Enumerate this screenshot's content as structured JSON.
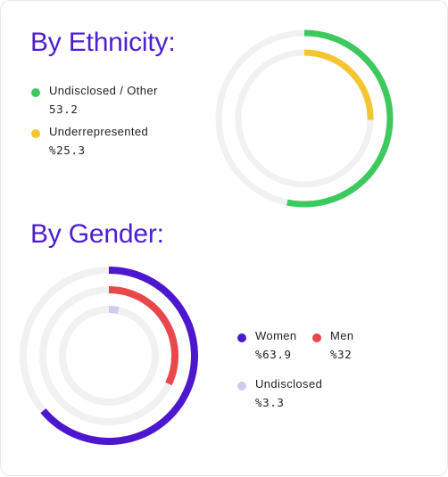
{
  "chart_data": [
    {
      "type": "donut",
      "title": "By Ethnicity:",
      "series": [
        {
          "name": "Undisclosed / Other",
          "value": 53.2,
          "value_label": "53.2",
          "color": "#3ec95f"
        },
        {
          "name": "Underrepresented",
          "value": 25.3,
          "value_label": "%25.3",
          "color": "#f3c631"
        }
      ],
      "track_color": "#f1f1f1"
    },
    {
      "type": "donut",
      "title": "By Gender:",
      "series": [
        {
          "name": "Women",
          "value": 63.9,
          "value_label": "%63.9",
          "color": "#4d17cf"
        },
        {
          "name": "Men",
          "value": 32,
          "value_label": "%32",
          "color": "#e8474c"
        },
        {
          "name": "Undisclosed",
          "value": 3.3,
          "value_label": "%3.3",
          "color": "#d2c8f0"
        }
      ],
      "track_color": "#f1f1f1"
    }
  ]
}
